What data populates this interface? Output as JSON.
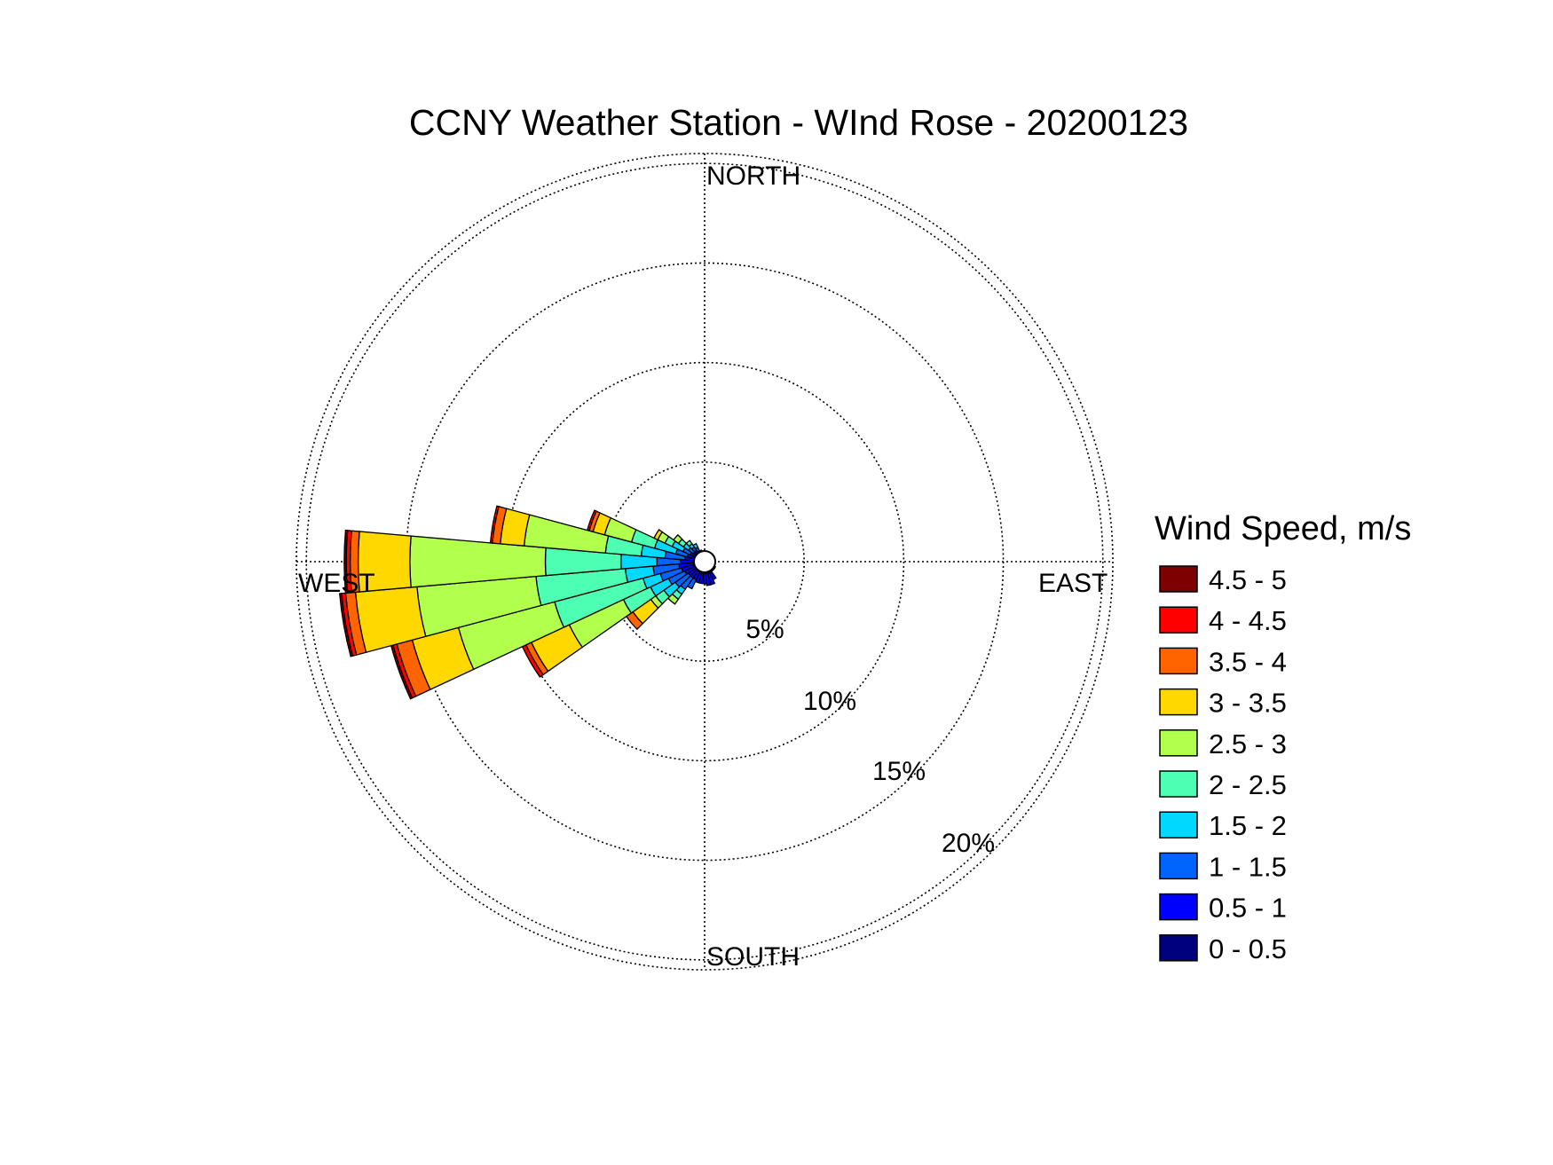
{
  "chart_data": {
    "type": "wind-rose",
    "title": "CCNY Weather Station - WInd Rose - 20200123",
    "direction_labels": {
      "north": "NORTH",
      "east": "EAST",
      "south": "SOUTH",
      "west": "WEST"
    },
    "radial_ticks": [
      {
        "value": 5,
        "label": "5%"
      },
      {
        "value": 10,
        "label": "10%"
      },
      {
        "value": 15,
        "label": "15%"
      },
      {
        "value": 20,
        "label": "20%"
      }
    ],
    "r_max": 20.5,
    "legend_title": "Wind Speed, m/s",
    "bins": [
      {
        "label": "0 - 0.5",
        "color": "#00007f"
      },
      {
        "label": "0.5 - 1",
        "color": "#0000ff"
      },
      {
        "label": "1 - 1.5",
        "color": "#0064ff"
      },
      {
        "label": "1.5 - 2",
        "color": "#00d8ff"
      },
      {
        "label": "2 - 2.5",
        "color": "#4cffb2"
      },
      {
        "label": "2.5 - 3",
        "color": "#b2ff4c"
      },
      {
        "label": "3 - 3.5",
        "color": "#ffd800"
      },
      {
        "label": "3.5 - 4",
        "color": "#ff6400"
      },
      {
        "label": "4 - 4.5",
        "color": "#ff0000"
      },
      {
        "label": "4.5 - 5",
        "color": "#7f0000"
      }
    ],
    "sector_width_deg": 10,
    "sectors": [
      {
        "direction_deg": 0,
        "cumulative": [
          0.4
        ]
      },
      {
        "direction_deg": 10,
        "cumulative": [
          0.4
        ]
      },
      {
        "direction_deg": 20,
        "cumulative": [
          0.4
        ]
      },
      {
        "direction_deg": 30,
        "cumulative": [
          0.5
        ]
      },
      {
        "direction_deg": 40,
        "cumulative": [
          0.5
        ]
      },
      {
        "direction_deg": 50,
        "cumulative": [
          0.5
        ]
      },
      {
        "direction_deg": 60,
        "cumulative": [
          0.5
        ]
      },
      {
        "direction_deg": 70,
        "cumulative": [
          0.5
        ]
      },
      {
        "direction_deg": 80,
        "cumulative": [
          0.5
        ]
      },
      {
        "direction_deg": 90,
        "cumulative": [
          0.5
        ]
      },
      {
        "direction_deg": 100,
        "cumulative": [
          0.5
        ]
      },
      {
        "direction_deg": 110,
        "cumulative": [
          0.5
        ]
      },
      {
        "direction_deg": 120,
        "cumulative": [
          0.6
        ]
      },
      {
        "direction_deg": 130,
        "cumulative": [
          0.6
        ]
      },
      {
        "direction_deg": 140,
        "cumulative": [
          0.6
        ]
      },
      {
        "direction_deg": 150,
        "cumulative": [
          0.6,
          1.0
        ]
      },
      {
        "direction_deg": 160,
        "cumulative": [
          0.6,
          1.2
        ]
      },
      {
        "direction_deg": 170,
        "cumulative": [
          0.6,
          1.2
        ]
      },
      {
        "direction_deg": 180,
        "cumulative": [
          0.6,
          1.1
        ]
      },
      {
        "direction_deg": 190,
        "cumulative": [
          0.6,
          1.1
        ]
      },
      {
        "direction_deg": 200,
        "cumulative": [
          0.6,
          1.1
        ]
      },
      {
        "direction_deg": 210,
        "cumulative": [
          0.5,
          1.0,
          1.5
        ]
      },
      {
        "direction_deg": 220,
        "cumulative": [
          0.5,
          1.0,
          1.7,
          2.0,
          2.3,
          2.6
        ]
      },
      {
        "direction_deg": 230,
        "cumulative": [
          0.5,
          1.0,
          1.8,
          2.5,
          3.0,
          3.3,
          4.4,
          4.8
        ]
      },
      {
        "direction_deg": 240,
        "cumulative": [
          0.5,
          1.1,
          2.0,
          3.0,
          4.5,
          7.5,
          9.6,
          9.9,
          10.1
        ]
      },
      {
        "direction_deg": 250,
        "cumulative": [
          0.5,
          1.2,
          2.3,
          3.2,
          7.8,
          12.8,
          15.2,
          16.0,
          16.2,
          16.3
        ]
      },
      {
        "direction_deg": 260,
        "cumulative": [
          0.5,
          1.3,
          2.6,
          4.0,
          8.5,
          14.5,
          17.6,
          18.1,
          18.3,
          18.4
        ]
      },
      {
        "direction_deg": 270,
        "cumulative": [
          0.5,
          1.2,
          2.4,
          4.2,
          8.0,
          14.8,
          17.4,
          17.8,
          18.0,
          18.1
        ]
      },
      {
        "direction_deg": 280,
        "cumulative": [
          0.5,
          1.0,
          2.0,
          3.2,
          5.0,
          9.1,
          10.3,
          10.7,
          10.8
        ]
      },
      {
        "direction_deg": 290,
        "cumulative": [
          0.5,
          0.9,
          1.5,
          2.6,
          3.8,
          5.2,
          5.8,
          6.0,
          6.1
        ]
      },
      {
        "direction_deg": 300,
        "cumulative": [
          0.5,
          0.8,
          1.2,
          1.8,
          2.2,
          2.6,
          2.8
        ]
      },
      {
        "direction_deg": 310,
        "cumulative": [
          0.5,
          0.7,
          1.0,
          1.3,
          1.6,
          1.9
        ]
      },
      {
        "direction_deg": 320,
        "cumulative": [
          0.5,
          0.7,
          0.9,
          1.1,
          1.3
        ]
      },
      {
        "direction_deg": 330,
        "cumulative": [
          0.5,
          0.6,
          0.8,
          1.0
        ]
      },
      {
        "direction_deg": 340,
        "cumulative": [
          0.4,
          0.6
        ]
      },
      {
        "direction_deg": 350,
        "cumulative": [
          0.4
        ]
      }
    ]
  }
}
